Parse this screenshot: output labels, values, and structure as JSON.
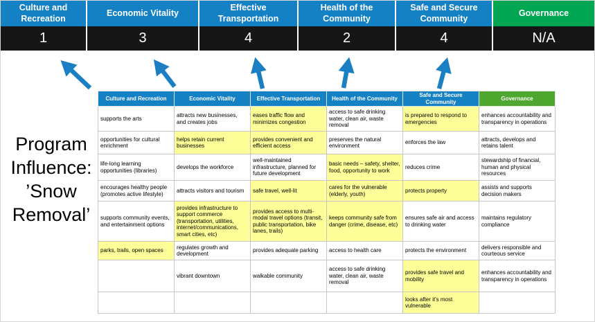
{
  "title": "Program\nInfluence:\n’Snow\nRemoval’",
  "colors": {
    "pillar_blue": "#1581c5",
    "pillar_green": "#00a651",
    "table_header_green": "#4ea72e",
    "score_bg": "#161616",
    "highlight": "#ffff99",
    "arrow": "#1b7fc4"
  },
  "score_panel": {
    "columns": [
      {
        "label": "Culture and Recreation",
        "score": "1",
        "color": "#1581c5"
      },
      {
        "label": "Economic Vitality",
        "score": "3",
        "color": "#1581c5"
      },
      {
        "label": "Effective Transportation",
        "score": "4",
        "color": "#1581c5"
      },
      {
        "label": "Health of the Community",
        "score": "2",
        "color": "#1581c5"
      },
      {
        "label": "Safe and Secure Community",
        "score": "4",
        "color": "#1581c5"
      },
      {
        "label": "Governance",
        "score": "N/A",
        "color": "#00a651"
      }
    ]
  },
  "table": {
    "headers": [
      {
        "label": "Culture and Recreation",
        "color": "#1581c5"
      },
      {
        "label": "Economic Vitality",
        "color": "#1581c5"
      },
      {
        "label": "Effective Transportation",
        "color": "#1581c5"
      },
      {
        "label": "Health of the Community",
        "color": "#1581c5"
      },
      {
        "label": "Safe and Secure Community",
        "color": "#1581c5"
      },
      {
        "label": "Governance",
        "color": "#4ea72e"
      }
    ],
    "rows": [
      [
        {
          "text": "supports the arts",
          "hl": false
        },
        {
          "text": "attracts new businesses, and creates jobs",
          "hl": false
        },
        {
          "text": "eases traffic flow and minimizes congestion",
          "hl": true
        },
        {
          "text": "access to safe drinking water, clean air, waste removal",
          "hl": false
        },
        {
          "text": "is prepared to respond to emergencies",
          "hl": true
        },
        {
          "text": "enhances accountability and transparency in operations",
          "hl": false
        }
      ],
      [
        {
          "text": "opportunities for cultural enrichment",
          "hl": false
        },
        {
          "text": "helps retain current businesses",
          "hl": true
        },
        {
          "text": "provides convenient and efficient access",
          "hl": true
        },
        {
          "text": "preserves the natural environment",
          "hl": false
        },
        {
          "text": "enforces the law",
          "hl": false
        },
        {
          "text": "attracts, develops and retains talent",
          "hl": false
        }
      ],
      [
        {
          "text": "life-long learning opportunities (libraries)",
          "hl": false
        },
        {
          "text": "develops the workforce",
          "hl": false
        },
        {
          "text": "well-maintained infrastructure, planned for future development",
          "hl": false
        },
        {
          "text": "basic needs – safety, shelter, food, opportunity to work",
          "hl": true
        },
        {
          "text": "reduces crime",
          "hl": false
        },
        {
          "text": "stewardship of financial, human and physical resources",
          "hl": false
        }
      ],
      [
        {
          "text": "encourages healthy people (promotes active lifestyle)",
          "hl": false
        },
        {
          "text": "attracts visitors and tourism",
          "hl": false
        },
        {
          "text": "safe travel, well-lit",
          "hl": true
        },
        {
          "text": "cares for the vulnerable (elderly, youth)",
          "hl": true
        },
        {
          "text": "protects property",
          "hl": true
        },
        {
          "text": "assists and supports decision makers",
          "hl": false
        }
      ],
      [
        {
          "text": "supports community events, and entertainment options",
          "hl": false
        },
        {
          "text": "provides infrastructure to support commerce (transportation, utilities, internet/communications, smart cities, etc)",
          "hl": true
        },
        {
          "text": "provides access to multi-modal travel options (transit, public transportation, bike lanes, trails)",
          "hl": true
        },
        {
          "text": "keeps community safe from danger (crime, disease, etc)",
          "hl": true
        },
        {
          "text": "ensures safe air and access to drinking water",
          "hl": false
        },
        {
          "text": "maintains regulatory compliance",
          "hl": false
        }
      ],
      [
        {
          "text": "parks, trails, open spaces",
          "hl": true
        },
        {
          "text": "regulates growth and development",
          "hl": false
        },
        {
          "text": "provides adequate parking",
          "hl": false
        },
        {
          "text": "access to health care",
          "hl": false
        },
        {
          "text": "protects the environment",
          "hl": false
        },
        {
          "text": "delivers responsible and courteous service",
          "hl": false
        }
      ],
      [
        {
          "text": "",
          "hl": false
        },
        {
          "text": "vibrant downtown",
          "hl": false
        },
        {
          "text": "walkable community",
          "hl": false
        },
        {
          "text": "access to safe drinking water, clean air, waste removal",
          "hl": false
        },
        {
          "text": "provides safe travel and mobility",
          "hl": true
        },
        {
          "text": "enhances accountability and transparency in operations",
          "hl": false
        }
      ],
      [
        {
          "text": "",
          "hl": false
        },
        {
          "text": "",
          "hl": false
        },
        {
          "text": "",
          "hl": false
        },
        {
          "text": "",
          "hl": false
        },
        {
          "text": "looks after it's most vulnerable",
          "hl": true
        },
        {
          "text": "",
          "hl": false
        }
      ]
    ]
  }
}
